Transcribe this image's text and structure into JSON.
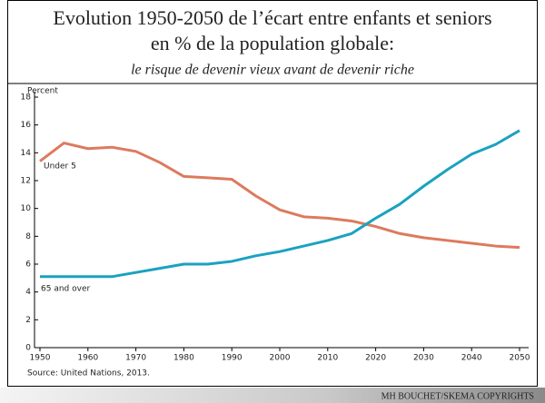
{
  "chart_data": {
    "type": "line",
    "title": [
      "Evolution 1950-2050 de l’écart entre enfants et seniors",
      "en % de la population globale:"
    ],
    "subtitle": "le risque de devenir vieux avant de devenir riche",
    "y_label": "Percent",
    "source": "Source: United Nations, 2013.",
    "footer": "MH BOUCHET/SKEMA COPYRIGHTS",
    "x": [
      1950,
      1955,
      1960,
      1965,
      1970,
      1975,
      1980,
      1985,
      1990,
      1995,
      2000,
      2005,
      2010,
      2015,
      2020,
      2025,
      2030,
      2035,
      2040,
      2045,
      2050
    ],
    "series": [
      {
        "name": "Under 5",
        "color": "#dd7a5e",
        "values": [
          13.4,
          14.7,
          14.3,
          14.4,
          14.1,
          13.3,
          12.3,
          12.2,
          12.1,
          10.9,
          9.9,
          9.4,
          9.3,
          9.1,
          8.7,
          8.2,
          7.9,
          7.7,
          7.5,
          7.3,
          7.2
        ]
      },
      {
        "name": "65 and over",
        "color": "#1aa2bf",
        "values": [
          5.1,
          5.1,
          5.1,
          5.1,
          5.4,
          5.7,
          6.0,
          6.0,
          6.2,
          6.6,
          6.9,
          7.3,
          7.7,
          8.2,
          9.3,
          10.3,
          11.6,
          12.8,
          13.9,
          14.6,
          15.6
        ]
      }
    ],
    "xlim": [
      1950,
      2050
    ],
    "xticks": [
      1950,
      1960,
      1970,
      1980,
      1990,
      2000,
      2010,
      2020,
      2030,
      2040,
      2050
    ],
    "ylim": [
      0,
      18
    ],
    "yticks": [
      0,
      2,
      4,
      6,
      8,
      10,
      12,
      14,
      16,
      18
    ]
  }
}
